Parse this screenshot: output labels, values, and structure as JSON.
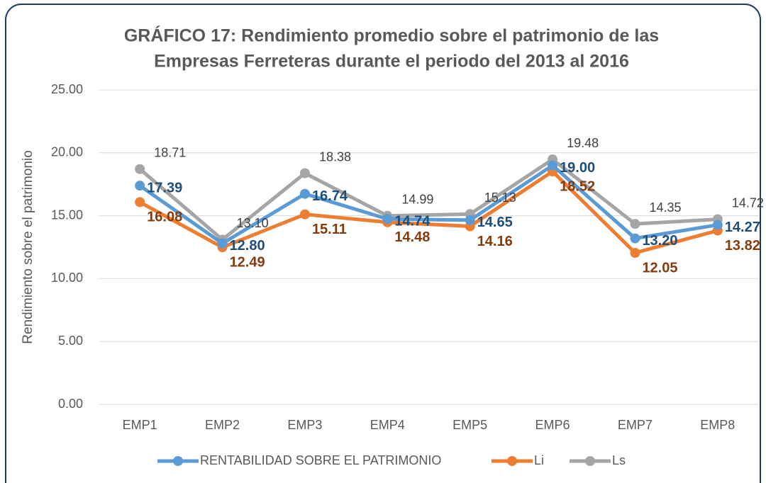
{
  "chart_data": {
    "type": "line",
    "title": [
      "GRÁFICO 17: Rendimiento promedio sobre el patrimonio de las",
      "Empresas Ferreteras durante el periodo del 2013 al 2016"
    ],
    "y_label": "Rendimiento sobre el patrimonio",
    "categories": [
      "EMP1",
      "EMP2",
      "EMP3",
      "EMP4",
      "EMP5",
      "EMP6",
      "EMP7",
      "EMP8"
    ],
    "ylim": [
      0,
      25
    ],
    "yticks": [
      {
        "value": 0,
        "label": "0.00"
      },
      {
        "value": 5,
        "label": "5.00"
      },
      {
        "value": 10,
        "label": "10.00"
      },
      {
        "value": 15,
        "label": "15.00"
      },
      {
        "value": 20,
        "label": "20.00"
      },
      {
        "value": 25,
        "label": "25.00"
      }
    ],
    "grid": true,
    "legend": "bottom",
    "series": [
      {
        "name": "RENTABILIDAD SOBRE EL PATRIMONIO",
        "color": "#5b9bd5",
        "label_color": "#1f4e79",
        "values": [
          17.39,
          12.8,
          16.74,
          14.74,
          14.65,
          19.0,
          13.2,
          14.27
        ],
        "value_labels": [
          "17.39",
          "12.80",
          "16.74",
          "14.74",
          "14.65",
          "19.00",
          "13.20",
          "14.27"
        ]
      },
      {
        "name": "Li",
        "color": "#ed7d31",
        "label_color": "#843c0c",
        "values": [
          16.08,
          12.49,
          15.11,
          14.48,
          14.16,
          18.52,
          12.05,
          13.82
        ],
        "value_labels": [
          "16.08",
          "12.49",
          "15.11",
          "14.48",
          "14.16",
          "18.52",
          "12.05",
          "13.82"
        ]
      },
      {
        "name": "Ls",
        "color": "#a5a5a5",
        "label_color": "#404040",
        "values": [
          18.71,
          13.1,
          18.38,
          14.99,
          15.13,
          19.48,
          14.35,
          14.72
        ],
        "value_labels": [
          "18.71",
          "13.10",
          "18.38",
          "14.99",
          "15.13",
          "19.48",
          "14.35",
          "14.72"
        ]
      }
    ]
  }
}
